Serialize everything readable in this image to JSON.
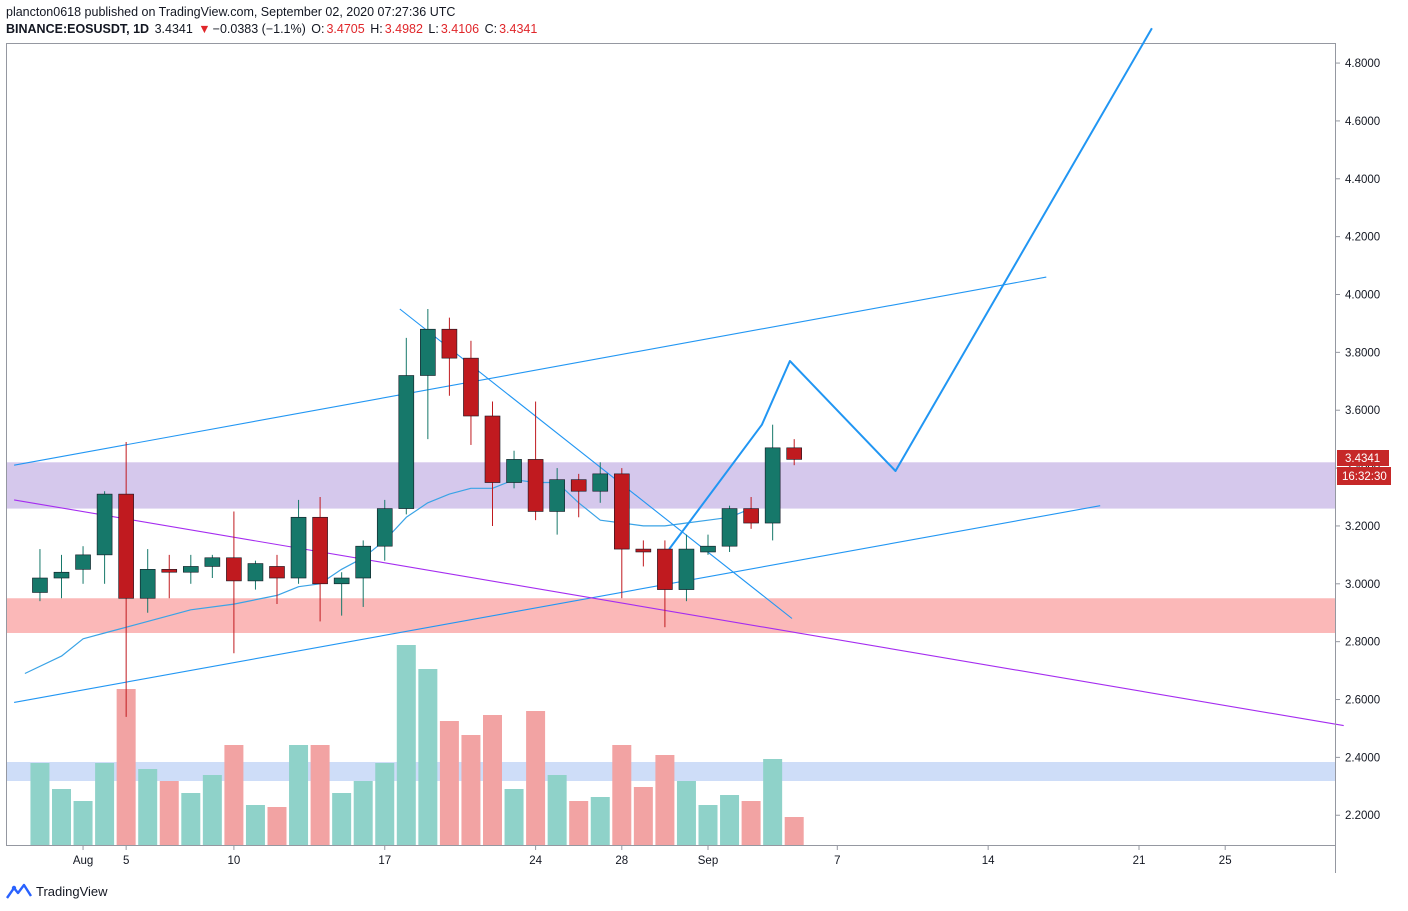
{
  "header": {
    "published": "plancton0618 published on TradingView.com, September 02, 2020 07:27:36 UTC",
    "symbol": "BINANCE:EOSUSDT, 1D",
    "last": "3.4341",
    "change_arrow": "▼",
    "change": "−0.0383 (−1.1%)",
    "o_label": "O:",
    "o_value": "3.4705",
    "h_label": "H:",
    "h_value": "3.4982",
    "l_label": "L:",
    "l_value": "3.4106",
    "c_label": "C:",
    "c_value": "3.4341"
  },
  "price_tag": {
    "value": "3.4341",
    "countdown": "16:32:30"
  },
  "footer": {
    "brand": "TradingView",
    "logo_icon": "tradingview-logo-icon"
  },
  "colors": {
    "up": "#16786a",
    "down": "#c01a1f",
    "vol_up": "#8fd2c9",
    "vol_down": "#f2a3a3",
    "trend": "#2196f3",
    "ma": "#3aa3e6",
    "purple_line": "#a52cf0",
    "zone_purple": "#d5c8ec",
    "zone_red": "#fbb8b8",
    "zone_blue": "#c6d7f7"
  },
  "chart_data": {
    "type": "candlestick",
    "symbol": "BINANCE:EOSUSDT",
    "interval": "1D",
    "ylim": [
      2.1,
      4.88
    ],
    "y_ticks": [
      "4.8000",
      "4.6000",
      "4.4000",
      "4.2000",
      "4.0000",
      "3.8000",
      "3.6000",
      "3.4000",
      "3.2000",
      "3.0000",
      "2.8000",
      "2.6000",
      "2.4000",
      "2.2000"
    ],
    "x_ticks": [
      {
        "day": 3,
        "label": "Aug"
      },
      {
        "day": 5,
        "label": "5"
      },
      {
        "day": 10,
        "label": "10"
      },
      {
        "day": 17,
        "label": "17"
      },
      {
        "day": 24,
        "label": "24"
      },
      {
        "day": 28,
        "label": "28"
      },
      {
        "day": 32,
        "label": "Sep"
      },
      {
        "day": 38,
        "label": "7"
      },
      {
        "day": 45,
        "label": "14"
      },
      {
        "day": 52,
        "label": "21"
      },
      {
        "day": 56,
        "label": "25"
      }
    ],
    "x_unit": "days since Jul 29, 2020",
    "candles": [
      {
        "date": "Jul 30",
        "o": 2.97,
        "h": 3.12,
        "l": 2.94,
        "c": 3.02
      },
      {
        "date": "Jul 31",
        "o": 3.02,
        "h": 3.1,
        "l": 2.95,
        "c": 3.04
      },
      {
        "date": "Aug 1",
        "o": 3.05,
        "h": 3.13,
        "l": 3.0,
        "c": 3.1
      },
      {
        "date": "Aug 2",
        "o": 3.1,
        "h": 3.32,
        "l": 3.0,
        "c": 3.31
      },
      {
        "date": "Aug 3",
        "o": 3.31,
        "h": 3.49,
        "l": 2.54,
        "c": 2.95
      },
      {
        "date": "Aug 4",
        "o": 2.95,
        "h": 3.12,
        "l": 2.9,
        "c": 3.05
      },
      {
        "date": "Aug 5",
        "o": 3.05,
        "h": 3.1,
        "l": 2.95,
        "c": 3.04
      },
      {
        "date": "Aug 6",
        "o": 3.04,
        "h": 3.1,
        "l": 3.0,
        "c": 3.06
      },
      {
        "date": "Aug 7",
        "o": 3.06,
        "h": 3.1,
        "l": 3.02,
        "c": 3.09
      },
      {
        "date": "Aug 8",
        "o": 3.09,
        "h": 3.25,
        "l": 2.76,
        "c": 3.01
      },
      {
        "date": "Aug 9",
        "o": 3.01,
        "h": 3.08,
        "l": 2.98,
        "c": 3.07
      },
      {
        "date": "Aug 10",
        "o": 3.06,
        "h": 3.1,
        "l": 2.93,
        "c": 3.02
      },
      {
        "date": "Aug 11",
        "o": 3.02,
        "h": 3.29,
        "l": 3.0,
        "c": 3.23
      },
      {
        "date": "Aug 12",
        "o": 3.23,
        "h": 3.3,
        "l": 2.87,
        "c": 3.0
      },
      {
        "date": "Aug 13",
        "o": 3.0,
        "h": 3.04,
        "l": 2.89,
        "c": 3.02
      },
      {
        "date": "Aug 14",
        "o": 3.02,
        "h": 3.15,
        "l": 2.92,
        "c": 3.13
      },
      {
        "date": "Aug 15",
        "o": 3.13,
        "h": 3.29,
        "l": 3.08,
        "c": 3.26
      },
      {
        "date": "Aug 16",
        "o": 3.26,
        "h": 3.85,
        "l": 3.24,
        "c": 3.72
      },
      {
        "date": "Aug 17",
        "o": 3.72,
        "h": 3.95,
        "l": 3.5,
        "c": 3.88
      },
      {
        "date": "Aug 18",
        "o": 3.88,
        "h": 3.92,
        "l": 3.65,
        "c": 3.78
      },
      {
        "date": "Aug 19",
        "o": 3.78,
        "h": 3.84,
        "l": 3.48,
        "c": 3.58
      },
      {
        "date": "Aug 20",
        "o": 3.58,
        "h": 3.63,
        "l": 3.2,
        "c": 3.35
      },
      {
        "date": "Aug 21",
        "o": 3.35,
        "h": 3.46,
        "l": 3.33,
        "c": 3.43
      },
      {
        "date": "Aug 22",
        "o": 3.43,
        "h": 3.63,
        "l": 3.22,
        "c": 3.25
      },
      {
        "date": "Aug 23",
        "o": 3.25,
        "h": 3.4,
        "l": 3.17,
        "c": 3.36
      },
      {
        "date": "Aug 24",
        "o": 3.36,
        "h": 3.38,
        "l": 3.23,
        "c": 3.32
      },
      {
        "date": "Aug 25",
        "o": 3.32,
        "h": 3.42,
        "l": 3.28,
        "c": 3.38
      },
      {
        "date": "Aug 26",
        "o": 3.38,
        "h": 3.4,
        "l": 2.95,
        "c": 3.12
      },
      {
        "date": "Aug 27",
        "o": 3.12,
        "h": 3.15,
        "l": 3.06,
        "c": 3.11
      },
      {
        "date": "Aug 28",
        "o": 3.12,
        "h": 3.15,
        "l": 2.85,
        "c": 2.98
      },
      {
        "date": "Aug 29",
        "o": 2.98,
        "h": 3.17,
        "l": 2.94,
        "c": 3.12
      },
      {
        "date": "Aug 30",
        "o": 3.11,
        "h": 3.17,
        "l": 3.1,
        "c": 3.13
      },
      {
        "date": "Aug 31",
        "o": 3.13,
        "h": 3.27,
        "l": 3.11,
        "c": 3.26
      },
      {
        "date": "Sep 1",
        "o": 3.26,
        "h": 3.3,
        "l": 3.19,
        "c": 3.21
      },
      {
        "date": "Sep 2",
        "o": 3.21,
        "h": 3.55,
        "l": 3.15,
        "c": 3.47
      },
      {
        "date": "Sep 3",
        "o": 3.47,
        "h": 3.5,
        "l": 3.41,
        "c": 3.43
      }
    ],
    "volume_rel": [
      0.41,
      0.28,
      0.22,
      0.41,
      0.78,
      0.38,
      0.32,
      0.26,
      0.35,
      0.5,
      0.2,
      0.19,
      0.5,
      0.5,
      0.26,
      0.32,
      0.41,
      1.0,
      0.88,
      0.62,
      0.55,
      0.65,
      0.28,
      0.67,
      0.35,
      0.22,
      0.24,
      0.5,
      0.29,
      0.45,
      0.32,
      0.2,
      0.25,
      0.22,
      0.43,
      0.14
    ],
    "ma": [
      [
        0.3,
        2.69
      ],
      [
        2,
        2.75
      ],
      [
        3,
        2.81
      ],
      [
        4,
        2.83
      ],
      [
        6,
        2.87
      ],
      [
        8,
        2.91
      ],
      [
        10,
        2.93
      ],
      [
        12,
        2.96
      ],
      [
        13,
        2.99
      ],
      [
        14,
        3.0
      ],
      [
        15,
        3.05
      ],
      [
        16,
        3.09
      ],
      [
        17,
        3.15
      ],
      [
        18,
        3.23
      ],
      [
        19,
        3.28
      ],
      [
        20,
        3.31
      ],
      [
        21,
        3.33
      ],
      [
        22,
        3.33
      ],
      [
        23,
        3.36
      ],
      [
        24,
        3.35
      ],
      [
        25,
        3.35
      ],
      [
        26,
        3.28
      ],
      [
        27,
        3.22
      ],
      [
        28,
        3.21
      ],
      [
        29,
        3.2
      ],
      [
        30,
        3.2
      ],
      [
        31,
        3.21
      ],
      [
        32,
        3.22
      ],
      [
        33,
        3.23
      ],
      [
        34,
        3.26
      ]
    ],
    "drawings": {
      "upper_trend": [
        [
          -0.2,
          3.41
        ],
        [
          47.7,
          4.06
        ]
      ],
      "lower_trend": [
        [
          -0.2,
          2.59
        ],
        [
          50.2,
          3.27
        ]
      ],
      "desc_trend": [
        [
          17.7,
          3.95
        ],
        [
          35.9,
          2.88
        ]
      ],
      "purple_line": [
        [
          -0.2,
          3.29
        ],
        [
          61.5,
          2.51
        ]
      ],
      "projection": [
        [
          30.2,
          3.12
        ],
        [
          34.5,
          3.55
        ],
        [
          35.8,
          3.77
        ],
        [
          40.7,
          3.39
        ],
        [
          52.6,
          4.92
        ]
      ],
      "zone_purple": [
        3.26,
        3.42
      ],
      "zone_red": [
        2.83,
        2.95
      ]
    }
  }
}
